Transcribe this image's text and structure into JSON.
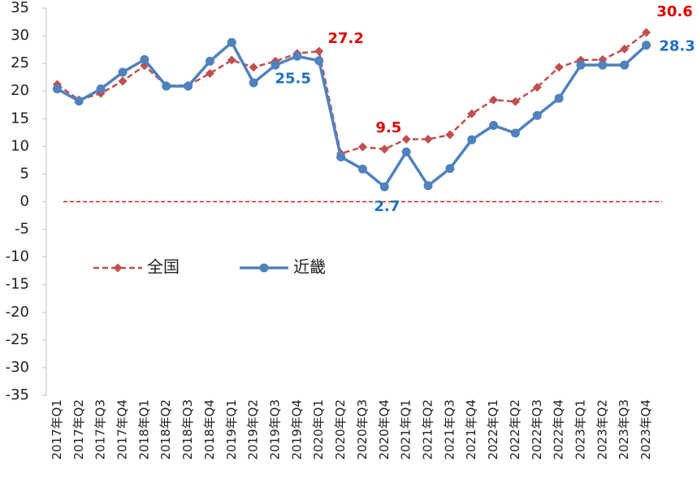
{
  "chart_data": {
    "type": "line",
    "categories": [
      "2017年Q1",
      "2017年Q2",
      "2017年Q3",
      "2017年Q4",
      "2018年Q1",
      "2018年Q2",
      "2018年Q3",
      "2018年Q4",
      "2019年Q1",
      "2019年Q2",
      "2019年Q3",
      "2019年Q4",
      "2020年Q1",
      "2020年Q2",
      "2020年Q3",
      "2020年Q4",
      "2021年Q1",
      "2021年Q2",
      "2021年Q3",
      "2021年Q4",
      "2022年Q1",
      "2022年Q2",
      "2022年Q3",
      "2022年Q4",
      "2023年Q1",
      "2023年Q2",
      "2023年Q3",
      "2023年Q4"
    ],
    "series": [
      {
        "name": "全国",
        "color": "#c0504d",
        "dashed": true,
        "marker": "diamond",
        "values": [
          21.2,
          18.4,
          19.6,
          21.8,
          24.6,
          21.0,
          21.0,
          23.2,
          25.6,
          24.3,
          25.4,
          26.8,
          27.2,
          8.7,
          9.9,
          9.5,
          11.3,
          11.3,
          12.1,
          15.9,
          18.4,
          18.1,
          20.7,
          24.3,
          25.6,
          25.7,
          27.6,
          30.6
        ],
        "value_labels": [
          null,
          null,
          null,
          null,
          null,
          null,
          null,
          null,
          null,
          null,
          null,
          null,
          "27.2",
          null,
          null,
          "9.5",
          null,
          null,
          null,
          null,
          null,
          null,
          null,
          null,
          null,
          null,
          null,
          "30.6"
        ],
        "label_color": "#e00000"
      },
      {
        "name": "近畿",
        "color": "#4f81bd",
        "dashed": false,
        "marker": "circle",
        "values": [
          20.4,
          18.2,
          20.4,
          23.4,
          25.7,
          20.9,
          20.9,
          25.4,
          28.8,
          21.5,
          24.7,
          26.3,
          25.5,
          8.1,
          5.9,
          2.7,
          9.0,
          2.9,
          6.0,
          11.2,
          13.8,
          12.4,
          15.6,
          18.7,
          24.7,
          24.7,
          24.7,
          28.3
        ],
        "value_labels": [
          null,
          null,
          null,
          null,
          null,
          null,
          null,
          null,
          null,
          null,
          null,
          null,
          "25.5",
          null,
          null,
          "2.7",
          null,
          null,
          null,
          null,
          null,
          null,
          null,
          null,
          null,
          null,
          null,
          "28.3"
        ],
        "label_color": "#1f6fbf"
      }
    ],
    "ylim": [
      -35,
      35
    ],
    "yticks": [
      -35,
      -30,
      -25,
      -20,
      -15,
      -10,
      -5,
      0,
      5,
      10,
      15,
      20,
      25,
      30,
      35
    ],
    "reference_line": {
      "value": 0,
      "color": "#e00000"
    },
    "grid": false
  }
}
